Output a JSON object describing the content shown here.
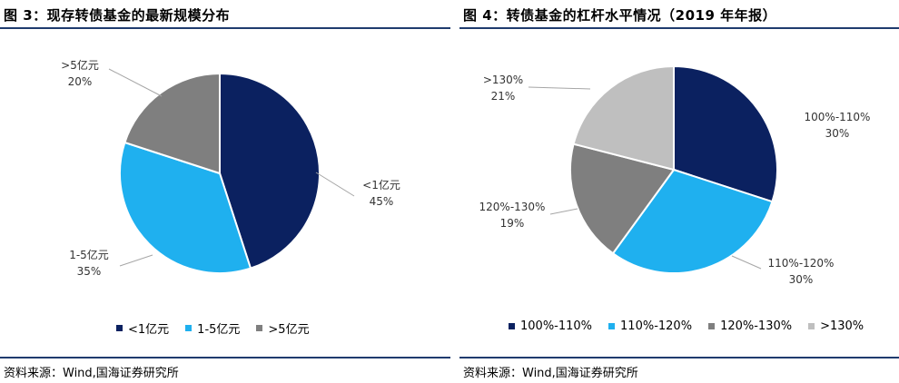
{
  "figures": [
    {
      "title": "图 3：现存转债基金的最新规模分布",
      "source": "资料来源：Wind,国海证券研究所"
    },
    {
      "title": "图 4：转债基金的杠杆水平情况（2019 年年报）",
      "source": "资料来源：Wind,国海证券研究所"
    }
  ],
  "chart_data": [
    {
      "type": "pie",
      "title": "图 3：现存转债基金的最新规模分布",
      "legend_position": "bottom",
      "slices": [
        {
          "name": "<1亿元",
          "value": 45,
          "label": "45%",
          "color": "#0b2160"
        },
        {
          "name": "1-5亿元",
          "value": 35,
          "label": "35%",
          "color": "#1fb0ef"
        },
        {
          "name": ">5亿元",
          "value": 20,
          "label": "20%",
          "color": "#7f7f7f"
        }
      ]
    },
    {
      "type": "pie",
      "title": "图 4：转债基金的杠杆水平情况（2019 年年报）",
      "legend_position": "bottom",
      "slices": [
        {
          "name": "100%-110%",
          "value": 30,
          "label": "30%",
          "color": "#0b2160"
        },
        {
          "name": "110%-120%",
          "value": 30,
          "label": "30%",
          "color": "#1fb0ef"
        },
        {
          "name": "120%-130%",
          "value": 19,
          "label": "19%",
          "color": "#7f7f7f"
        },
        {
          "name": ">130%",
          "value": 21,
          "label": "21%",
          "color": "#bfbfbf"
        }
      ]
    }
  ]
}
